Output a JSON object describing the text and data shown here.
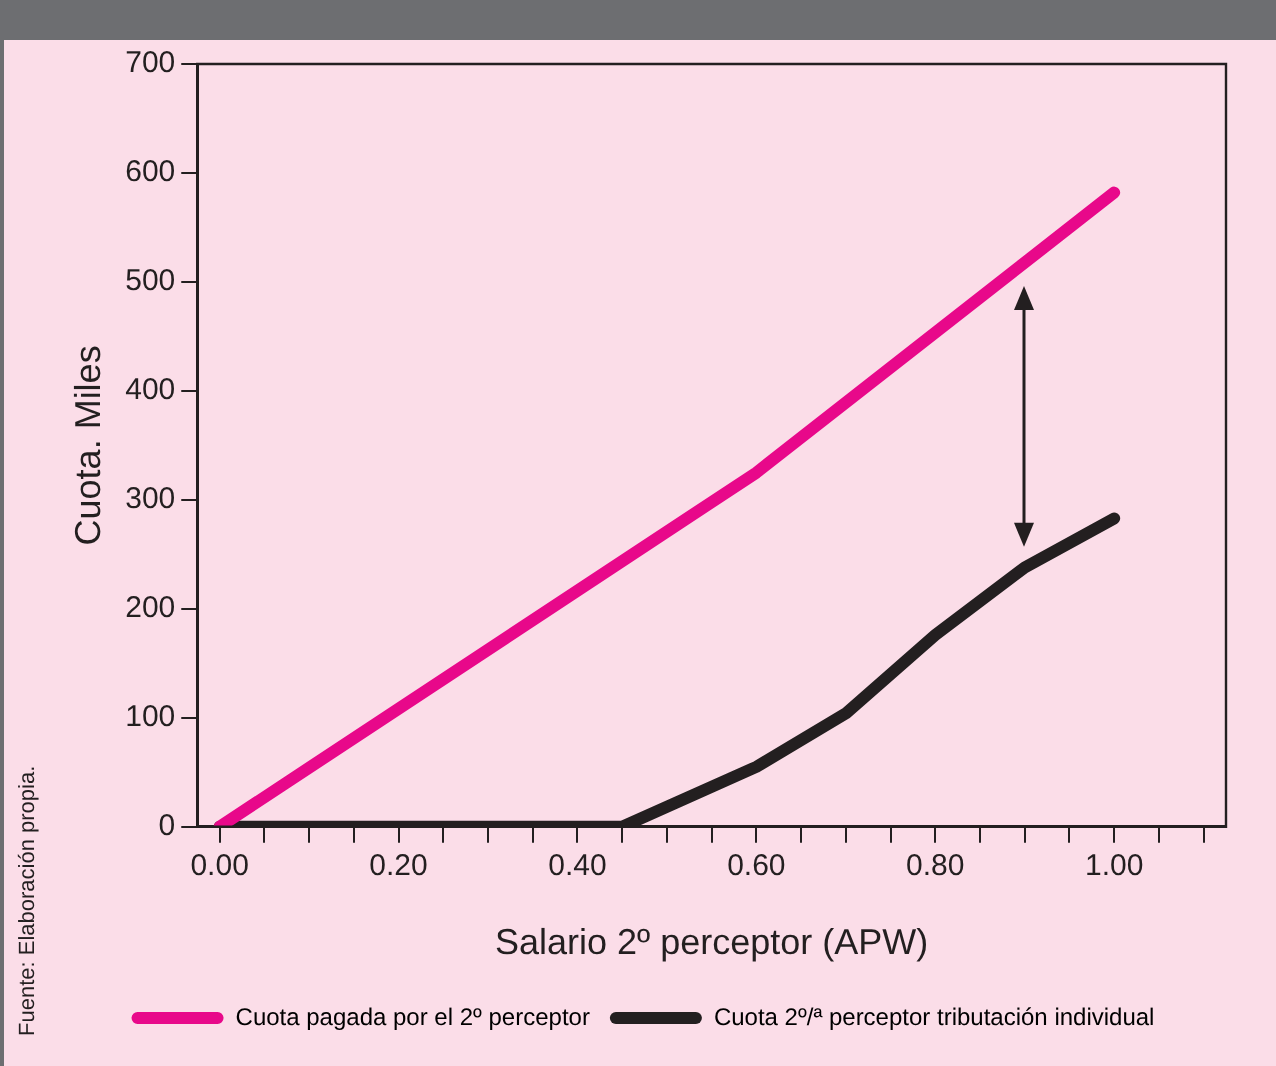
{
  "chart_data": {
    "type": "line",
    "xlabel": "Salario 2º perceptor (APW)",
    "ylabel": "Cuota. Miles",
    "x": [
      0,
      0.45,
      0.6,
      0.7,
      0.8,
      0.9,
      1.0
    ],
    "series": [
      {
        "name": "Cuota pagada por el 2º perceptor",
        "color": "#e8088a",
        "x": [
          0,
          0.6,
          1.0
        ],
        "values": [
          0,
          325,
          582
        ]
      },
      {
        "name": "Cuota 2º/ª perceptor tributación individual",
        "color": "#231f20",
        "values": [
          0,
          0,
          55,
          104,
          176,
          238,
          283
        ]
      }
    ],
    "xlim": [
      -0.025,
      1.125
    ],
    "xticks": [
      {
        "value": 0,
        "label": "0.00"
      },
      {
        "value": 0.05,
        "label": null
      },
      {
        "value": 0.1,
        "label": null
      },
      {
        "value": 0.15,
        "label": null
      },
      {
        "value": 0.2,
        "label": "0.20"
      },
      {
        "value": 0.25,
        "label": null
      },
      {
        "value": 0.3,
        "label": null
      },
      {
        "value": 0.35,
        "label": null
      },
      {
        "value": 0.4,
        "label": "0.40"
      },
      {
        "value": 0.45,
        "label": null
      },
      {
        "value": 0.5,
        "label": null
      },
      {
        "value": 0.55,
        "label": null
      },
      {
        "value": 0.6,
        "label": "0.60"
      },
      {
        "value": 0.65,
        "label": null
      },
      {
        "value": 0.7,
        "label": null
      },
      {
        "value": 0.75,
        "label": null
      },
      {
        "value": 0.8,
        "label": "0.80"
      },
      {
        "value": 0.85,
        "label": null
      },
      {
        "value": 0.9,
        "label": null
      },
      {
        "value": 0.95,
        "label": null
      },
      {
        "value": 1.0,
        "label": "1.00"
      },
      {
        "value": 1.05,
        "label": null
      },
      {
        "value": 1.1,
        "label": null
      }
    ],
    "ylim": [
      0,
      700
    ],
    "yticks": [
      0,
      100,
      200,
      300,
      400,
      500,
      600,
      700
    ],
    "grid": false,
    "legend": "bottom",
    "marker": "none",
    "line_style": "solid",
    "annotations": [
      "Fuente: Elaboración propia."
    ]
  }
}
